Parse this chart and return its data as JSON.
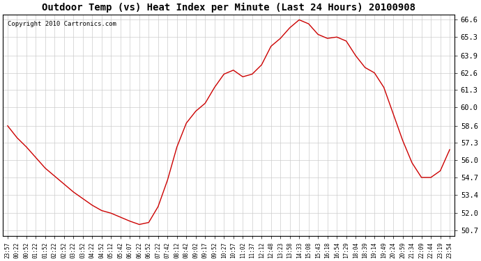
{
  "title": "Outdoor Temp (vs) Heat Index per Minute (Last 24 Hours) 20100908",
  "copyright": "Copyright 2010 Cartronics.com",
  "line_color": "#cc0000",
  "background_color": "#ffffff",
  "plot_bg_color": "#ffffff",
  "grid_color": "#cccccc",
  "yticks": [
    50.7,
    52.0,
    53.4,
    54.7,
    56.0,
    57.3,
    58.6,
    60.0,
    61.3,
    62.6,
    63.9,
    65.3,
    66.6
  ],
  "ylim": [
    50.3,
    67.0
  ],
  "xtick_labels": [
    "23:57",
    "00:22",
    "00:52",
    "01:22",
    "01:52",
    "02:22",
    "02:52",
    "03:22",
    "03:52",
    "04:22",
    "04:52",
    "05:12",
    "05:42",
    "06:07",
    "06:22",
    "06:52",
    "07:22",
    "07:42",
    "08:12",
    "08:42",
    "09:02",
    "09:17",
    "09:52",
    "10:27",
    "10:57",
    "11:02",
    "11:37",
    "12:12",
    "12:48",
    "13:23",
    "13:58",
    "14:33",
    "15:08",
    "15:43",
    "16:18",
    "16:54",
    "17:29",
    "18:04",
    "18:39",
    "19:14",
    "19:49",
    "20:24",
    "20:59",
    "21:34",
    "22:09",
    "22:44",
    "23:19",
    "23:54"
  ],
  "curve_x": [
    0,
    1,
    2,
    3,
    4,
    5,
    6,
    7,
    8,
    9,
    10,
    11,
    12,
    13,
    14,
    15,
    16,
    17,
    18,
    19,
    20,
    21,
    22,
    23,
    24,
    25,
    26,
    27,
    28,
    29,
    30,
    31,
    32,
    33,
    34,
    35,
    36,
    37,
    38,
    39,
    40,
    41,
    42,
    43,
    44,
    45,
    46,
    47
  ],
  "curve_y": [
    58.6,
    57.7,
    57.0,
    56.2,
    55.4,
    54.8,
    54.2,
    53.6,
    53.1,
    52.6,
    52.2,
    52.0,
    51.7,
    51.4,
    51.15,
    51.3,
    52.5,
    54.5,
    57.0,
    58.8,
    59.7,
    60.3,
    61.5,
    62.5,
    62.8,
    62.3,
    62.5,
    63.2,
    64.6,
    65.2,
    66.0,
    66.6,
    66.3,
    65.5,
    65.2,
    65.3,
    65.0,
    63.9,
    63.0,
    62.6,
    61.5,
    59.5,
    57.5,
    55.8,
    54.7,
    54.7,
    55.2,
    56.8
  ]
}
